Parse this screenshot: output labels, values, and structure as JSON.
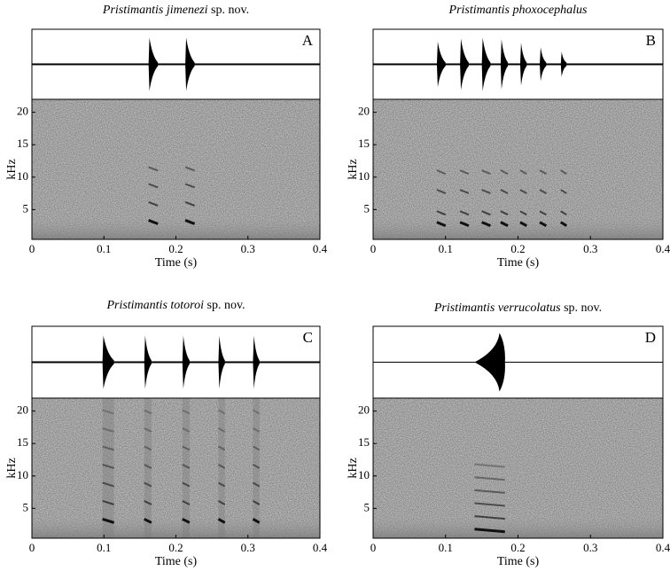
{
  "chart_data": [
    {
      "type": "spectrogram",
      "title": "Pristimantis jimenezi",
      "title_suffix": "sp. nov.",
      "panel": "A",
      "xlabel": "Time (s)",
      "ylabel": "kHz",
      "xlim": [
        0,
        0.4
      ],
      "xticks": [
        0,
        0.1,
        0.2,
        0.3,
        0.4
      ],
      "ylim": [
        0.4,
        22
      ],
      "yticks": [
        5,
        10,
        15,
        20
      ],
      "note_starts": [
        0.162,
        0.213
      ],
      "note_ends": [
        0.175,
        0.226
      ],
      "harmonics": [
        2.8,
        5.6,
        8.4,
        11
      ]
    },
    {
      "type": "spectrogram",
      "title": "Pristimantis phoxocephalus",
      "panel": "B",
      "xlabel": "Time (s)",
      "ylabel": "kHz",
      "xlim": [
        0,
        0.4
      ],
      "xticks": [
        0,
        0.1,
        0.2,
        0.3,
        0.4
      ],
      "ylim": [
        0.4,
        22
      ],
      "yticks": [
        5,
        10,
        15,
        20
      ],
      "note_starts": [
        0.088,
        0.12,
        0.15,
        0.176,
        0.203,
        0.23,
        0.259
      ],
      "note_ends": [
        0.1,
        0.132,
        0.162,
        0.186,
        0.212,
        0.239,
        0.267
      ],
      "harmonics": [
        2.5,
        4.2,
        7.5,
        10.5
      ]
    },
    {
      "type": "spectrogram",
      "title": "Pristimantis totoroi",
      "title_suffix": "sp. nov.",
      "panel": "C",
      "xlabel": "Time (s)",
      "ylabel": "kHz",
      "xlim": [
        0,
        0.4
      ],
      "xticks": [
        0,
        0.1,
        0.2,
        0.3,
        0.4
      ],
      "ylim": [
        0.4,
        22
      ],
      "yticks": [
        5,
        10,
        15,
        20
      ],
      "note_starts": [
        0.098,
        0.156,
        0.209,
        0.259,
        0.307
      ],
      "note_ends": [
        0.114,
        0.166,
        0.219,
        0.268,
        0.316
      ],
      "harmonics": [
        2.8,
        5.6,
        8.4,
        11.2,
        14,
        16.8,
        19.6
      ]
    },
    {
      "type": "spectrogram",
      "title": "Pristimantis verrucolatus",
      "title_suffix": "sp. nov.",
      "panel": "D",
      "xlabel": "Time (s)",
      "ylabel": "kHz",
      "xlim": [
        0,
        0.4
      ],
      "xticks": [
        0,
        0.1,
        0.2,
        0.3,
        0.4
      ],
      "ylim": [
        0.4,
        22
      ],
      "yticks": [
        5,
        10,
        15,
        20
      ],
      "note_starts": [
        0.14
      ],
      "note_ends": [
        0.182
      ],
      "harmonics": [
        1.8,
        3.8,
        5.8,
        7.8,
        9.8,
        11.8
      ]
    }
  ]
}
